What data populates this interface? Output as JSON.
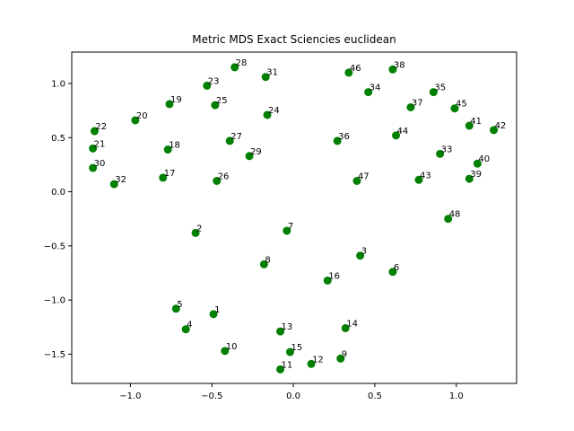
{
  "chart_data": {
    "type": "scatter",
    "title": "Metric MDS Exact Sciencies euclidean",
    "xlabel": "",
    "ylabel": "",
    "xlim": [
      -1.36,
      1.37
    ],
    "ylim": [
      -1.77,
      1.29
    ],
    "xticks": [
      -1.0,
      -0.5,
      0.0,
      0.5,
      1.0
    ],
    "xtick_labels": [
      "−1.0",
      "−0.5",
      "0.0",
      "0.5",
      "1.0"
    ],
    "yticks": [
      -1.5,
      -1.0,
      -0.5,
      0.0,
      0.5,
      1.0
    ],
    "ytick_labels": [
      "−1.5",
      "−1.0",
      "−0.5",
      "0.0",
      "0.5",
      "1.0"
    ],
    "grid": false,
    "marker_color": "#008000",
    "points": [
      {
        "label": "1",
        "x": -0.49,
        "y": -1.13
      },
      {
        "label": "2",
        "x": -0.6,
        "y": -0.38
      },
      {
        "label": "3",
        "x": 0.41,
        "y": -0.59
      },
      {
        "label": "4",
        "x": -0.66,
        "y": -1.27
      },
      {
        "label": "5",
        "x": -0.72,
        "y": -1.08
      },
      {
        "label": "6",
        "x": 0.61,
        "y": -0.74
      },
      {
        "label": "7",
        "x": -0.04,
        "y": -0.36
      },
      {
        "label": "8",
        "x": -0.18,
        "y": -0.67
      },
      {
        "label": "9",
        "x": 0.29,
        "y": -1.54
      },
      {
        "label": "10",
        "x": -0.42,
        "y": -1.47
      },
      {
        "label": "11",
        "x": -0.08,
        "y": -1.64
      },
      {
        "label": "12",
        "x": 0.11,
        "y": -1.59
      },
      {
        "label": "13",
        "x": -0.08,
        "y": -1.29
      },
      {
        "label": "14",
        "x": 0.32,
        "y": -1.26
      },
      {
        "label": "15",
        "x": -0.02,
        "y": -1.48
      },
      {
        "label": "16",
        "x": 0.21,
        "y": -0.82
      },
      {
        "label": "17",
        "x": -0.8,
        "y": 0.13
      },
      {
        "label": "18",
        "x": -0.77,
        "y": 0.39
      },
      {
        "label": "19",
        "x": -0.76,
        "y": 0.81
      },
      {
        "label": "20",
        "x": -0.97,
        "y": 0.66
      },
      {
        "label": "21",
        "x": -1.23,
        "y": 0.4
      },
      {
        "label": "22",
        "x": -1.22,
        "y": 0.56
      },
      {
        "label": "23",
        "x": -0.53,
        "y": 0.98
      },
      {
        "label": "24",
        "x": -0.16,
        "y": 0.71
      },
      {
        "label": "25",
        "x": -0.48,
        "y": 0.8
      },
      {
        "label": "26",
        "x": -0.47,
        "y": 0.1
      },
      {
        "label": "27",
        "x": -0.39,
        "y": 0.47
      },
      {
        "label": "28",
        "x": -0.36,
        "y": 1.15
      },
      {
        "label": "29",
        "x": -0.27,
        "y": 0.33
      },
      {
        "label": "30",
        "x": -1.23,
        "y": 0.22
      },
      {
        "label": "31",
        "x": -0.17,
        "y": 1.06
      },
      {
        "label": "32",
        "x": -1.1,
        "y": 0.07
      },
      {
        "label": "33",
        "x": 0.9,
        "y": 0.35
      },
      {
        "label": "34",
        "x": 0.46,
        "y": 0.92
      },
      {
        "label": "35",
        "x": 0.86,
        "y": 0.92
      },
      {
        "label": "36",
        "x": 0.27,
        "y": 0.47
      },
      {
        "label": "37",
        "x": 0.72,
        "y": 0.78
      },
      {
        "label": "38",
        "x": 0.61,
        "y": 1.13
      },
      {
        "label": "39",
        "x": 1.08,
        "y": 0.12
      },
      {
        "label": "40",
        "x": 1.13,
        "y": 0.26
      },
      {
        "label": "41",
        "x": 1.08,
        "y": 0.61
      },
      {
        "label": "42",
        "x": 1.23,
        "y": 0.57
      },
      {
        "label": "43",
        "x": 0.77,
        "y": 0.11
      },
      {
        "label": "44",
        "x": 0.63,
        "y": 0.52
      },
      {
        "label": "45",
        "x": 0.99,
        "y": 0.77
      },
      {
        "label": "46",
        "x": 0.34,
        "y": 1.1
      },
      {
        "label": "47",
        "x": 0.39,
        "y": 0.1
      },
      {
        "label": "48",
        "x": 0.95,
        "y": -0.25
      }
    ]
  }
}
